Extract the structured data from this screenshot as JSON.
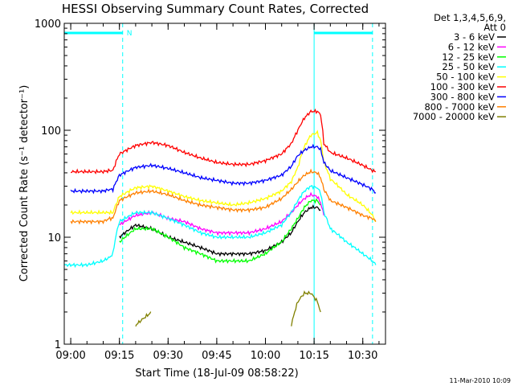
{
  "chart_data": {
    "type": "line",
    "title": "HESSI Observing Summary Count Rates, Corrected",
    "xlabel": "Start Time (18-Jul-09 08:58:22)",
    "ylabel": "Corrected Count Rate (s⁻¹ detector⁻¹)",
    "y_scale": "log",
    "ylim": [
      1,
      1000
    ],
    "xlim": [
      "08:58",
      "10:37"
    ],
    "x_ticks": [
      "09:00",
      "09:15",
      "09:30",
      "09:45",
      "10:00",
      "10:15",
      "10:30"
    ],
    "y_ticks": [
      "1",
      "10",
      "100",
      "1000"
    ],
    "legend": {
      "placement": "right",
      "header_line1": "Det 1,3,4,5,6,9,",
      "header_line2": "Att 0"
    },
    "annotations": [
      {
        "text": "N",
        "x": "09:17",
        "y": 1000
      }
    ],
    "markers": {
      "solid_vertical": [
        "08:58",
        "10:15"
      ],
      "dashed_vertical": [
        "09:16",
        "10:33"
      ],
      "top_bars": [
        [
          "08:58",
          "09:16"
        ],
        [
          "10:15",
          "10:33"
        ]
      ]
    },
    "x_sample_times": [
      "08:58",
      "09:00",
      "09:05",
      "09:10",
      "09:12",
      "09:13",
      "09:15",
      "09:20",
      "09:25",
      "09:30",
      "09:35",
      "09:40",
      "09:45",
      "09:50",
      "09:55",
      "10:00",
      "10:05",
      "10:08",
      "10:10",
      "10:12",
      "10:14",
      "10:16",
      "10:17",
      "10:18",
      "10:20",
      "10:25",
      "10:30",
      "10:33",
      "10:34"
    ],
    "series": [
      {
        "name": "3 - 6 keV",
        "color": "#000000",
        "values": [
          null,
          null,
          null,
          null,
          null,
          null,
          10,
          13,
          12,
          10,
          9,
          8,
          7,
          7,
          7,
          7.5,
          9,
          11,
          14,
          17,
          19,
          19,
          18,
          null,
          null,
          null,
          null,
          null,
          null
        ]
      },
      {
        "name": "6 - 12 keV",
        "color": "#ff00ff",
        "values": [
          null,
          null,
          null,
          null,
          null,
          null,
          13,
          16,
          17,
          15,
          14,
          12,
          11,
          11,
          11,
          12,
          14,
          17,
          20,
          23,
          25,
          24,
          21,
          16,
          null,
          null,
          null,
          null,
          null
        ]
      },
      {
        "name": "12 - 25 keV",
        "color": "#00ff00",
        "values": [
          null,
          null,
          null,
          null,
          null,
          null,
          9,
          12,
          12,
          10,
          8,
          7,
          6,
          6,
          6,
          7,
          9,
          12,
          15,
          19,
          22,
          22,
          20,
          null,
          null,
          null,
          null,
          null,
          null
        ]
      },
      {
        "name": "25 - 50 keV",
        "color": "#00ffff",
        "values": [
          5.5,
          5.5,
          5.5,
          6,
          6.5,
          7,
          14,
          17,
          17,
          15,
          13,
          11,
          10,
          10,
          10,
          11,
          13,
          17,
          22,
          27,
          30,
          29,
          26,
          17,
          12,
          9,
          7,
          6,
          5.5
        ]
      },
      {
        "name": "50 - 100 keV",
        "color": "#ffff00",
        "values": [
          null,
          17,
          17,
          17,
          17,
          17,
          24,
          29,
          30,
          27,
          24,
          22,
          21,
          20,
          21,
          23,
          27,
          33,
          45,
          70,
          90,
          95,
          80,
          50,
          35,
          25,
          20,
          16,
          14
        ]
      },
      {
        "name": "100 - 300 keV",
        "color": "#ff0000",
        "values": [
          null,
          41,
          41,
          41,
          42,
          42,
          60,
          72,
          77,
          72,
          62,
          55,
          50,
          48,
          48,
          52,
          60,
          75,
          100,
          130,
          150,
          150,
          140,
          75,
          62,
          55,
          47,
          42,
          41
        ]
      },
      {
        "name": "300 - 800 keV",
        "color": "#0000ff",
        "values": [
          null,
          27,
          27,
          27,
          28,
          28,
          38,
          45,
          47,
          44,
          40,
          36,
          34,
          32,
          32,
          34,
          38,
          46,
          58,
          65,
          70,
          70,
          66,
          50,
          42,
          36,
          31,
          28,
          26
        ]
      },
      {
        "name": "800 - 7000 keV",
        "color": "#ff8000",
        "values": [
          null,
          14,
          14,
          14,
          15,
          15,
          22,
          26,
          27,
          25,
          22,
          20,
          19,
          18,
          18,
          19,
          23,
          28,
          33,
          38,
          41,
          40,
          36,
          28,
          22,
          19,
          16,
          15,
          14
        ]
      },
      {
        "name": "7000 - 20000 keV",
        "color": "#808000",
        "values": [
          null,
          null,
          null,
          null,
          null,
          null,
          null,
          1.5,
          2,
          null,
          null,
          null,
          null,
          null,
          null,
          null,
          null,
          1.5,
          2.5,
          3,
          3,
          2.5,
          2,
          null,
          null,
          null,
          null,
          null,
          null
        ]
      }
    ]
  },
  "footer_text": "11-Mar-2010 10:09"
}
